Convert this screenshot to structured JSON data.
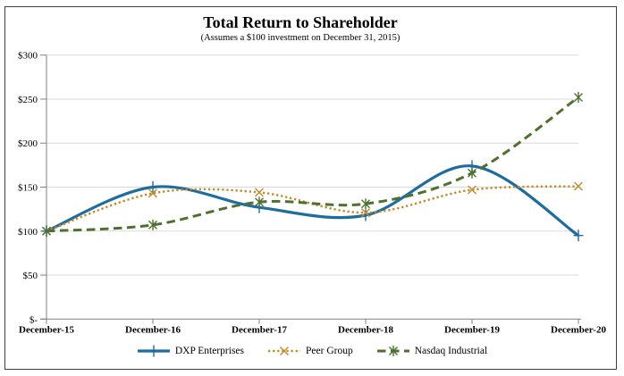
{
  "chart_data": {
    "type": "line",
    "title": "Total Return to Shareholder",
    "subtitle": "(Assumes a $100 investment on December 31, 2015)",
    "categories": [
      "December-15",
      "December-16",
      "December-17",
      "December-18",
      "December-19",
      "December-20"
    ],
    "y_axis": {
      "min": 0,
      "max": 300,
      "step": 50,
      "tick_labels_bottom_to_top": [
        "$-",
        "$50",
        "$100",
        "$150",
        "$200",
        "$250",
        "$300"
      ]
    },
    "grid": true,
    "smoothed_lines": true,
    "legend_position": "bottom",
    "series": [
      {
        "name": "DXP Enterprises",
        "color": "#1F6D9E",
        "line_style": "solid",
        "marker": "plus",
        "values": [
          100,
          150,
          127,
          118,
          174,
          95
        ]
      },
      {
        "name": "Peer Group",
        "color": "#C5882A",
        "line_style": "dotted",
        "marker": "x",
        "values": [
          100,
          143,
          144,
          121,
          147,
          151
        ]
      },
      {
        "name": "Nasdaq Industrial",
        "color": "#4F7031",
        "line_style": "dashed",
        "marker": "asterisk",
        "values": [
          100,
          107,
          133,
          131,
          166,
          252
        ]
      }
    ],
    "colors": {
      "gridline": "#D9D9D9",
      "axis": "#808080",
      "text": "#000000",
      "frame_border": "#3F3F3F"
    }
  }
}
